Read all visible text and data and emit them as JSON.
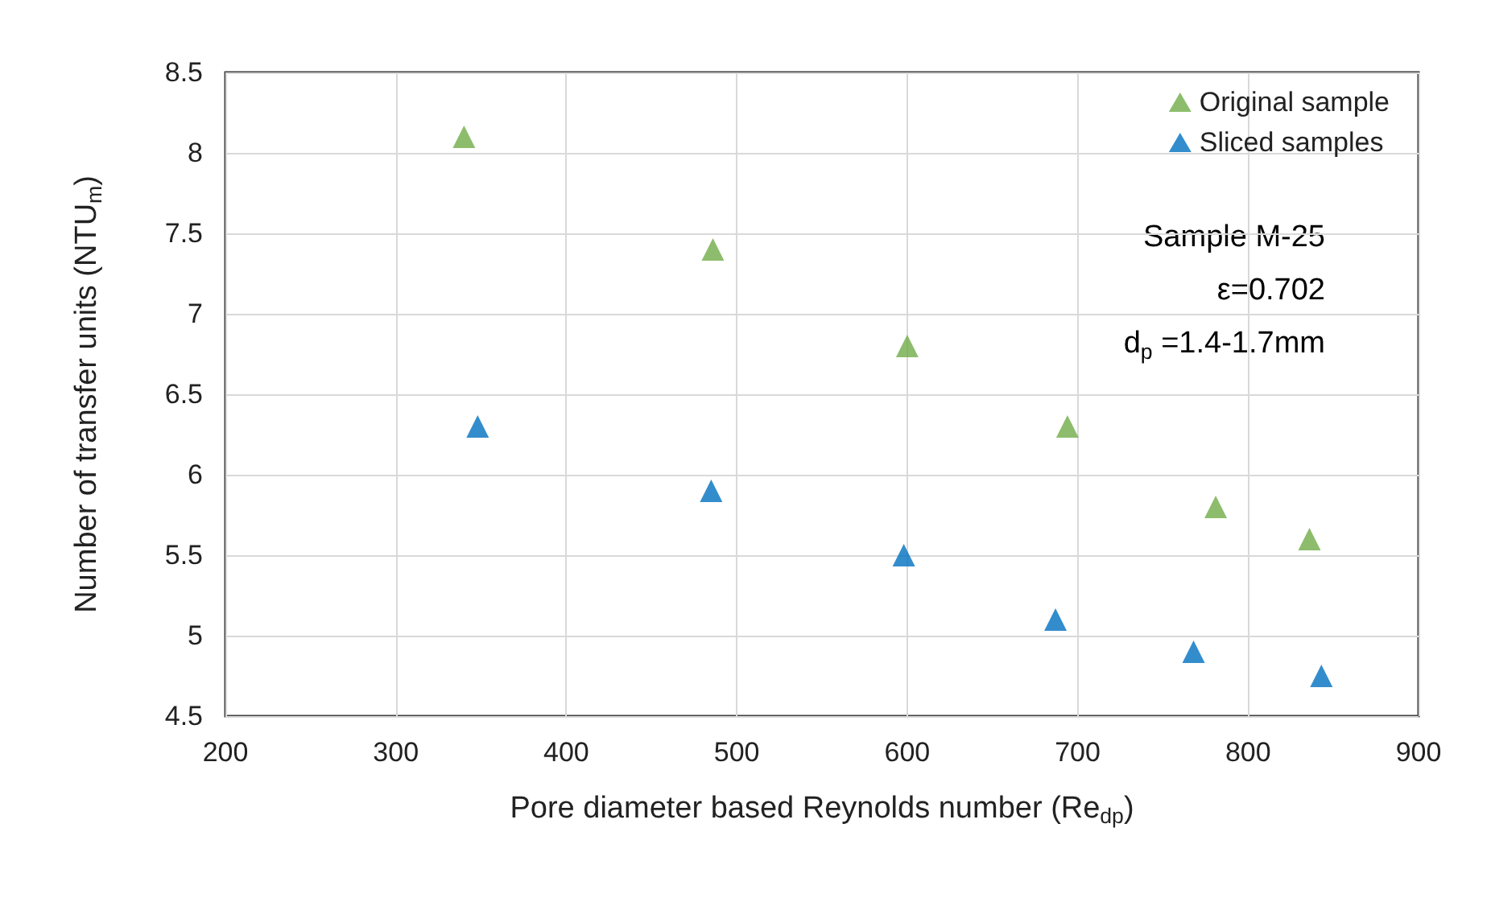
{
  "chart_data": {
    "type": "scatter",
    "xlabel": "Pore diameter based Reynolds number (Re$_{dp}$)",
    "ylabel": "Number of transfer units (NTU$_{m}$)",
    "series": [
      {
        "name": "Original sample",
        "color": "#70ad47",
        "x": [
          340,
          486,
          600,
          694,
          781,
          836
        ],
        "values": [
          8.1,
          7.4,
          6.8,
          6.3,
          5.8,
          5.6
        ]
      },
      {
        "name": "Sliced samples",
        "color": "#0070c0",
        "x": [
          348,
          485,
          598,
          687,
          768,
          843
        ],
        "values": [
          6.3,
          5.9,
          5.5,
          5.1,
          4.9,
          4.75
        ]
      }
    ],
    "annotations": [
      "Sample M-25",
      "ε=0.702",
      "d$_{p}$ =1.4-1.7mm"
    ],
    "xlim": [
      200,
      900
    ],
    "xticks": [
      200,
      300,
      400,
      500,
      600,
      700,
      800,
      900
    ],
    "ylim": [
      4.5,
      8.5
    ],
    "yticks": [
      4.5,
      5,
      5.5,
      6,
      6.5,
      7,
      7.5,
      8,
      8.5
    ],
    "grid": true,
    "legend": "top right",
    "marker": "triangle"
  }
}
